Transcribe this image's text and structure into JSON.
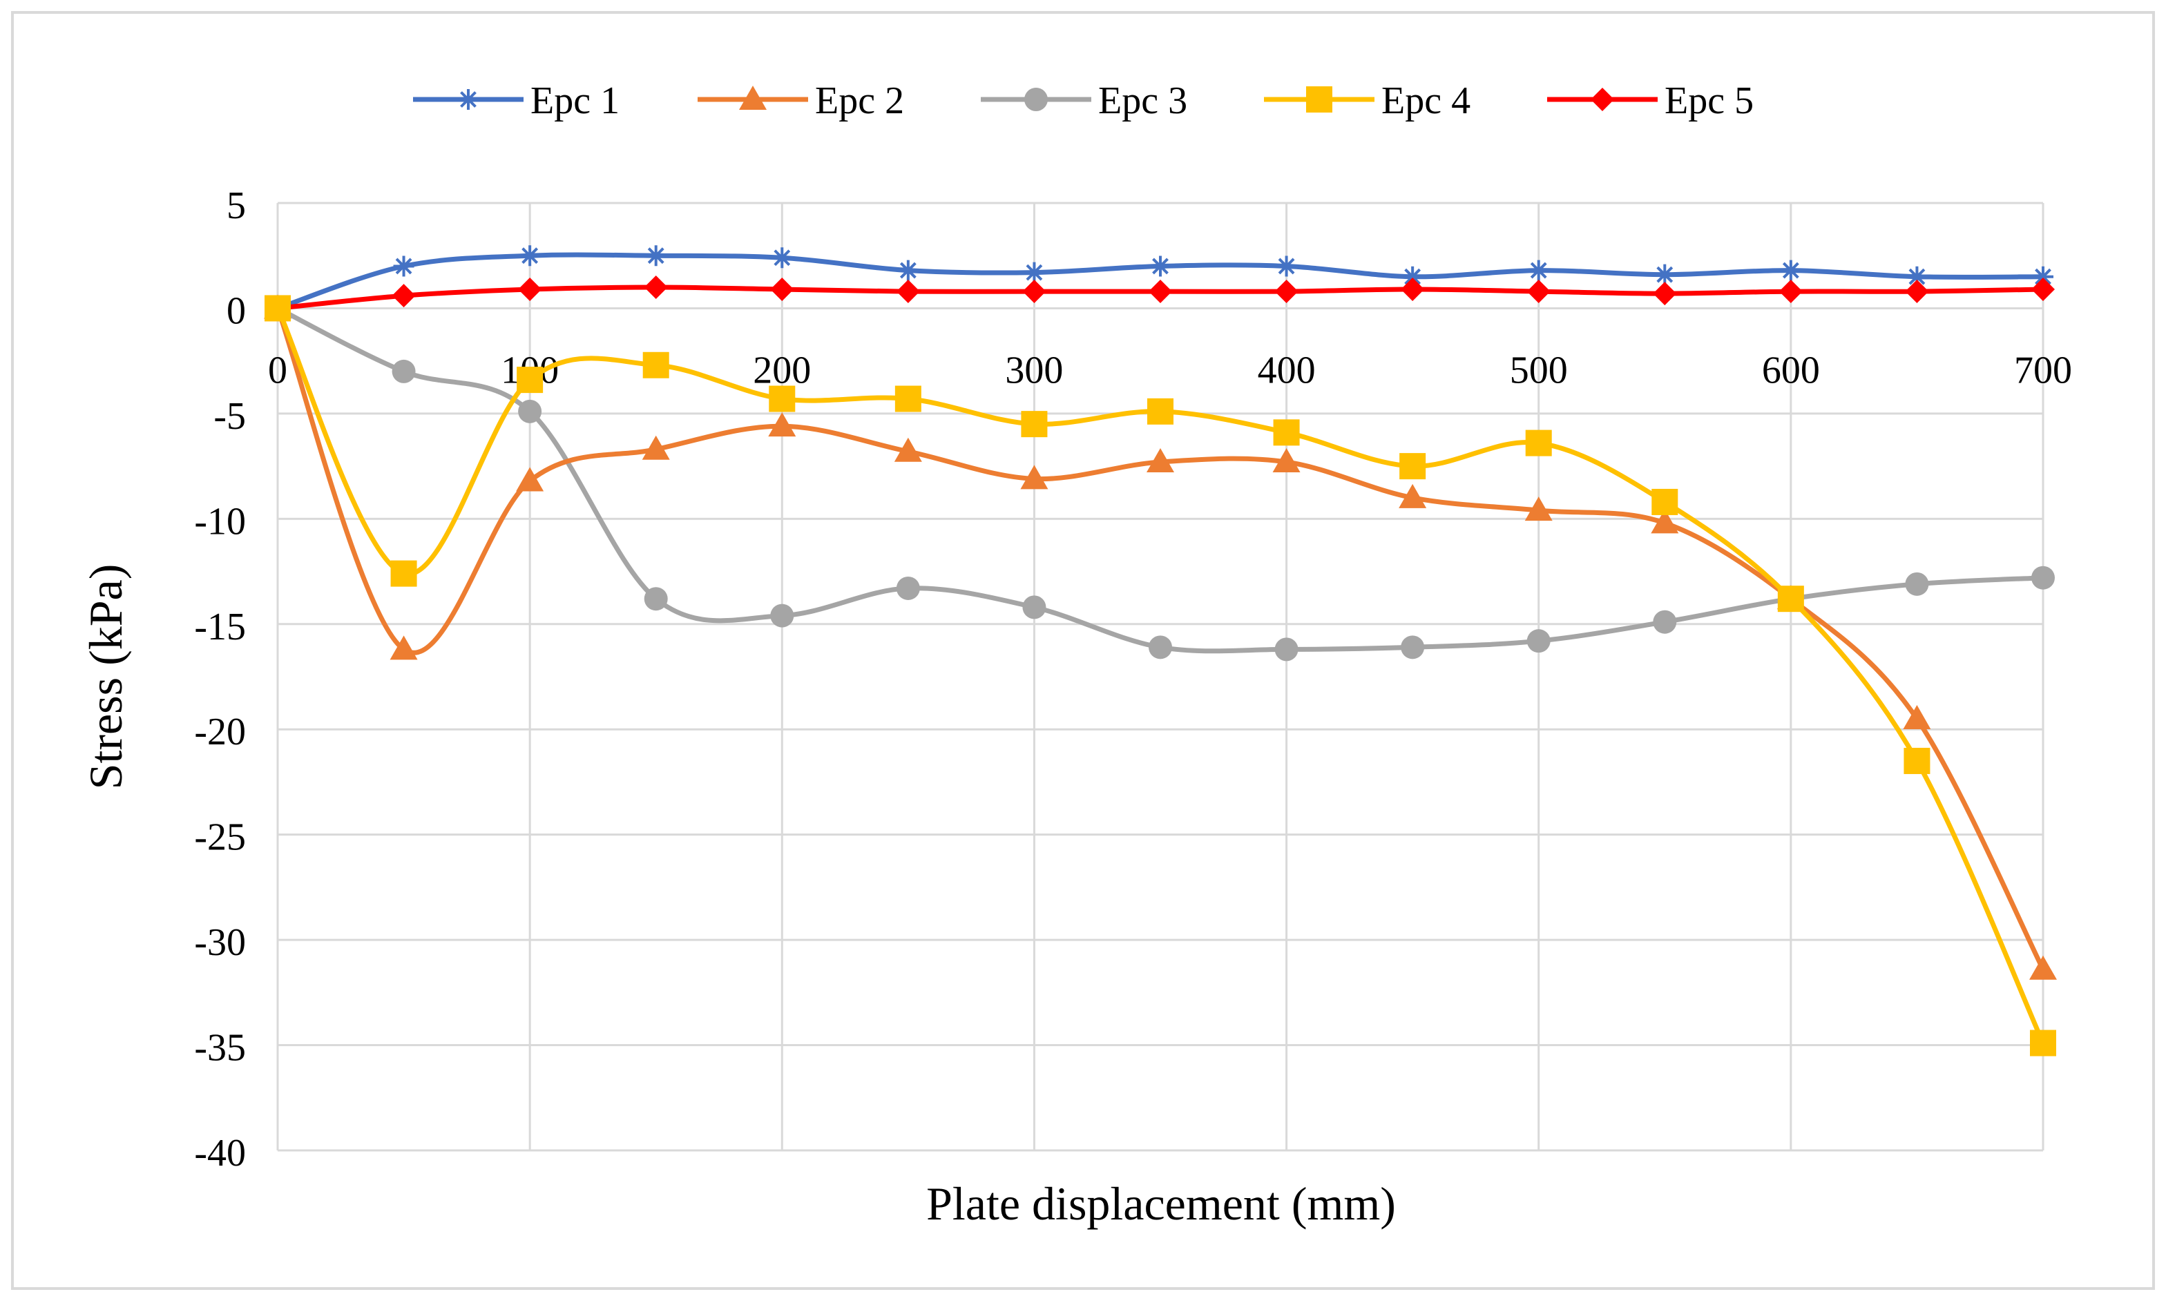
{
  "chart_data": {
    "type": "line",
    "xlabel": "Plate displacement (mm)",
    "ylabel": "Stress (kPa)",
    "xlim": [
      0,
      700
    ],
    "ylim": [
      -40,
      5
    ],
    "x_ticks": [
      "0",
      "100",
      "200",
      "300",
      "400",
      "500",
      "600",
      "700"
    ],
    "y_ticks": [
      "5",
      "0",
      "-5",
      "-10",
      "-15",
      "-20",
      "-25",
      "-30",
      "-35",
      "-40"
    ],
    "grid": true,
    "legend_position": "top",
    "smooth_lines": true,
    "x": [
      0,
      50,
      100,
      150,
      200,
      250,
      300,
      350,
      400,
      450,
      500,
      550,
      600,
      650,
      700
    ],
    "series": [
      {
        "name": "Epc 1",
        "color": "#4472C4",
        "marker": "star",
        "values": [
          0,
          2.0,
          2.5,
          2.5,
          2.4,
          1.8,
          1.7,
          2.0,
          2.0,
          1.5,
          1.8,
          1.6,
          1.8,
          1.5,
          1.5
        ]
      },
      {
        "name": "Epc 2",
        "color": "#ED7D31",
        "marker": "triangle",
        "values": [
          0,
          -16.2,
          -8.2,
          -6.7,
          -5.6,
          -6.8,
          -8.1,
          -7.3,
          -7.3,
          -9.0,
          -9.6,
          -10.2,
          -13.8,
          -19.5,
          -31.4
        ]
      },
      {
        "name": "Epc 3",
        "color": "#A5A5A5",
        "marker": "circle",
        "values": [
          0,
          -3.0,
          -4.9,
          -13.8,
          -14.6,
          -13.3,
          -14.2,
          -16.1,
          -16.2,
          -16.1,
          -15.8,
          -14.9,
          -13.8,
          -13.1,
          -12.8
        ]
      },
      {
        "name": "Epc 4",
        "color": "#FFC000",
        "marker": "square",
        "values": [
          0,
          -12.6,
          -3.4,
          -2.7,
          -4.3,
          -4.3,
          -5.5,
          -4.9,
          -5.9,
          -7.5,
          -6.4,
          -9.2,
          -13.8,
          -21.5,
          -34.9
        ]
      },
      {
        "name": "Epc 5",
        "color": "#FF0000",
        "marker": "diamond",
        "values": [
          0,
          0.6,
          0.9,
          1.0,
          0.9,
          0.8,
          0.8,
          0.8,
          0.8,
          0.9,
          0.8,
          0.7,
          0.8,
          0.8,
          0.9
        ]
      }
    ]
  }
}
